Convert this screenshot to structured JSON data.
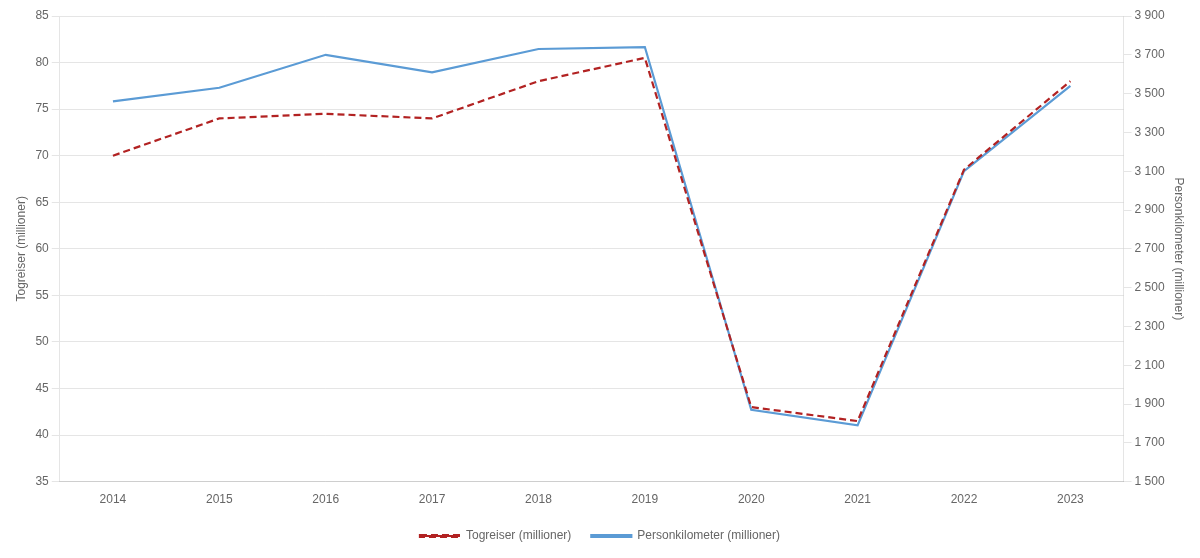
{
  "chart_data": {
    "type": "line",
    "x": [
      2014,
      2015,
      2016,
      2017,
      2018,
      2019,
      2020,
      2021,
      2022,
      2023
    ],
    "xlim": [
      2013.5,
      2023.5
    ],
    "xticks": [
      2014,
      2015,
      2016,
      2017,
      2018,
      2019,
      2020,
      2021,
      2022,
      2023
    ],
    "y_label": "Togreiser (millioner)",
    "y2_label": "Personkilometer (millioner)",
    "ylim": [
      35,
      85
    ],
    "yticks": [
      35,
      40,
      45,
      50,
      55,
      60,
      65,
      70,
      75,
      80,
      85
    ],
    "y2lim": [
      1500,
      3900
    ],
    "y2ticks": [
      {
        "value": 1500,
        "label": "1 500"
      },
      {
        "value": 1700,
        "label": "1 700"
      },
      {
        "value": 1900,
        "label": "1 900"
      },
      {
        "value": 2100,
        "label": "2 100"
      },
      {
        "value": 2300,
        "label": "2 300"
      },
      {
        "value": 2500,
        "label": "2 500"
      },
      {
        "value": 2700,
        "label": "2 700"
      },
      {
        "value": 2900,
        "label": "2 900"
      },
      {
        "value": 3100,
        "label": "3 100"
      },
      {
        "value": 3300,
        "label": "3 300"
      },
      {
        "value": 3500,
        "label": "3 500"
      },
      {
        "value": 3700,
        "label": "3 700"
      },
      {
        "value": 3900,
        "label": "3 900"
      }
    ],
    "grid": true,
    "legend": "bottom",
    "series": [
      {
        "name": "Togreiser (millioner)",
        "color": "#b22222",
        "line_style": "dashed",
        "values": [
          70.0,
          74.0,
          74.5,
          74.0,
          78.0,
          80.5,
          43.0,
          41.5,
          68.5,
          78.0
        ]
      },
      {
        "name": "Personkilometer (millioner)",
        "color": "#5b9bd5",
        "line_style": "solid",
        "axis": "y2",
        "values": [
          3460,
          3530,
          3700,
          3610,
          3730,
          3740,
          1870,
          1790,
          3100,
          3540
        ]
      }
    ]
  }
}
